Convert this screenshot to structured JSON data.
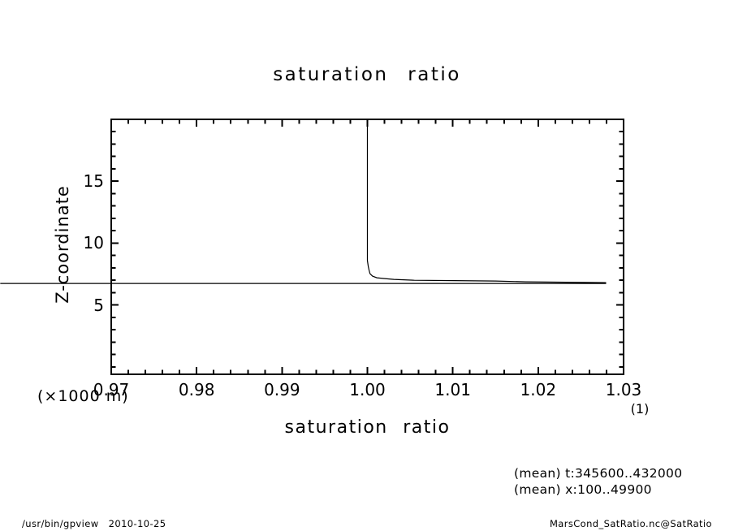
{
  "page": {
    "background": "#ffffff",
    "ink": "#000000"
  },
  "chart_data": {
    "type": "line",
    "title": "saturation ratio",
    "xlabel": "saturation ratio",
    "ylabel": "Z-coordinate",
    "x_unit": "(1)",
    "y_unit": "(×1000 m)",
    "xlim": [
      0.97,
      1.03
    ],
    "ylim": [
      -0.6,
      20
    ],
    "grid": false,
    "legend": "none",
    "x_ticks": {
      "values": [
        0.97,
        0.98,
        0.99,
        1.0,
        1.01,
        1.02,
        1.03
      ],
      "labels": [
        "0.97",
        "0.98",
        "0.99",
        "1.00",
        "1.01",
        "1.02",
        "1.03"
      ],
      "minor_step": 0.002
    },
    "y_ticks": {
      "values": [
        5,
        10,
        15
      ],
      "labels": [
        "5",
        "10",
        "15"
      ],
      "minor_step": 1,
      "minor_range": [
        0,
        20
      ]
    },
    "series": [
      {
        "name": "saturation-ratio-profile",
        "points": [
          [
            1.0,
            20.0
          ],
          [
            1.0,
            8.6
          ],
          [
            1.0001,
            8.1
          ],
          [
            1.0002,
            7.8
          ],
          [
            1.0003,
            7.53
          ],
          [
            1.0006,
            7.33
          ],
          [
            1.0011,
            7.2
          ],
          [
            1.0019,
            7.14
          ],
          [
            1.0031,
            7.07
          ],
          [
            1.0055,
            7.0
          ],
          [
            1.0102,
            6.97
          ],
          [
            1.015,
            6.94
          ],
          [
            1.0185,
            6.87
          ],
          [
            1.0279,
            6.81
          ],
          [
            1.0279,
            6.74
          ],
          [
            0.957,
            6.74
          ]
        ]
      }
    ]
  },
  "annotations": {
    "line1": "(mean) t:345600..432000",
    "line2": "(mean) x:100..49900"
  },
  "footer": {
    "left": "/usr/bin/gpview   2010-10-25",
    "right": "MarsCond_SatRatio.nc@SatRatio"
  }
}
